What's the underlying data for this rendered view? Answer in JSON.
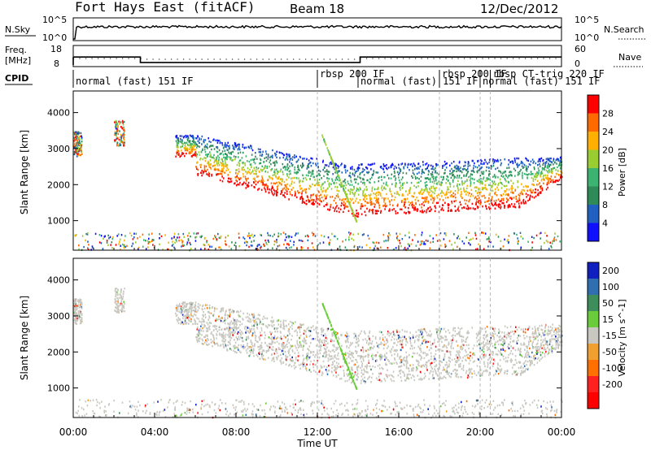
{
  "header": {
    "station": "Fort Hays East (fitACF)",
    "beam": "Beam 18",
    "date": "12/Dec/2012"
  },
  "chart_data": [
    {
      "type": "line",
      "name": "noise",
      "left_label": "N.Sky",
      "right_label": "N.Search",
      "left_ticks": [
        "10^5",
        "10^0"
      ],
      "right_ticks": [
        "10^5",
        "10^0"
      ]
    },
    {
      "type": "line",
      "name": "frequency-nave",
      "left_label_1": "Freq.",
      "left_label_2": "[MHz]",
      "right_label": "Nave",
      "left_ticks": [
        "18",
        "8"
      ],
      "right_ticks": [
        "60",
        "0"
      ],
      "freq_segments": [
        {
          "x0": 0.0,
          "x1": 3.3,
          "value": 12.5
        },
        {
          "x0": 3.3,
          "x1": 14.1,
          "value": 9.7
        },
        {
          "x0": 14.1,
          "x1": 24.0,
          "value": 12.5
        }
      ]
    },
    {
      "type": "table",
      "name": "cpid",
      "label": "CPID",
      "modes": [
        {
          "start": 0.0,
          "text": "normal (fast) 151 IF"
        },
        {
          "start": 12.0,
          "text": "rbsp 200 IF"
        },
        {
          "start": 14.0,
          "text": "normal (fast) 151 IF"
        },
        {
          "start": 18.0,
          "text": "rbsp 200 IF"
        },
        {
          "start": 20.0,
          "text": "normal (fast) 151 IF"
        },
        {
          "start": 20.5,
          "text": "rbsp CT-trig 220 IF"
        }
      ]
    },
    {
      "type": "heatmap",
      "name": "power",
      "ylabel": "Slant Range [km]",
      "y_ticks": [
        1000,
        2000,
        3000,
        4000
      ],
      "ylim": [
        180,
        4600
      ],
      "colorbar_label": "Power [dB]",
      "colorbar_ticks": [
        4,
        8,
        12,
        16,
        20,
        24,
        28
      ],
      "colorbar_range": [
        0,
        32
      ],
      "colors": [
        "#1010ff",
        "#2060c0",
        "#2e8b57",
        "#3cb371",
        "#9acd32",
        "#ffb000",
        "#ff6a00",
        "#ff0000"
      ]
    },
    {
      "type": "heatmap",
      "name": "velocity",
      "ylabel": "Slant Range [km]",
      "y_ticks": [
        1000,
        2000,
        3000,
        4000
      ],
      "ylim": [
        180,
        4600
      ],
      "xlabel": "Time UT",
      "x_ticks": [
        "00:00",
        "04:00",
        "08:00",
        "12:00",
        "16:00",
        "20:00",
        "00:00"
      ],
      "x_range_hours": [
        0,
        24
      ],
      "colorbar_label": "Velocity [m s^-1]",
      "colorbar_ticks": [
        "200",
        "100",
        "50",
        "15",
        "-15",
        "-50",
        "-100",
        "-200"
      ],
      "colors": [
        "#1020c0",
        "#2f6fb0",
        "#3d8e5a",
        "#6acc3a",
        "#c8c8c0",
        "#f0a030",
        "#ff7000",
        "#ff2020",
        "#ff0000"
      ]
    }
  ]
}
